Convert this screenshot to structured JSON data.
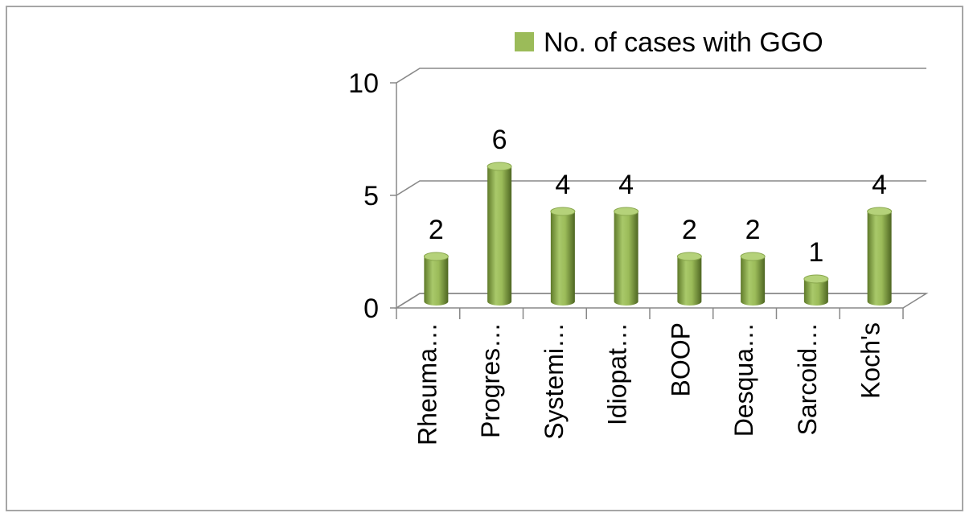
{
  "chart_data": {
    "type": "bar3d",
    "categories": [
      "Rheuma…",
      "Progres…",
      "Systemi…",
      "Idiopat…",
      "BOOP",
      "Desqua…",
      "Sarcoid…",
      "Koch's"
    ],
    "series": [
      {
        "name": "No. of cases with GGO",
        "color": "#9bbb59",
        "values": [
          2,
          6,
          4,
          4,
          2,
          2,
          1,
          4
        ]
      }
    ],
    "ylim": [
      0,
      10
    ],
    "yticks": [
      0,
      5,
      10
    ],
    "grid": true,
    "legend": "top"
  }
}
